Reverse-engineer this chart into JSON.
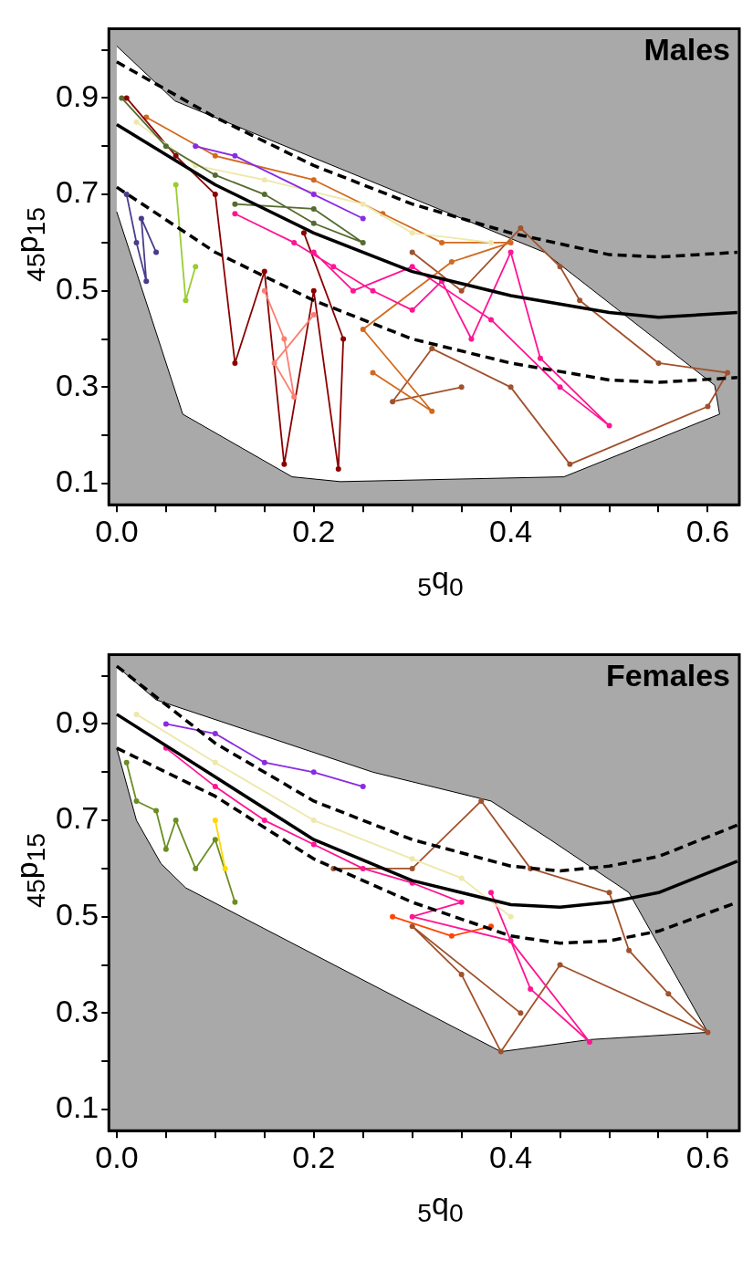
{
  "chart_data": [
    {
      "type": "line",
      "title": "Males",
      "xlabel": "$_{5}$q$_{0}$",
      "ylabel": "$_{45}$p$_{15}$",
      "xlim": [
        -0.008,
        0.632
      ],
      "ylim": [
        0.056,
        1.044
      ],
      "xticks": [
        {
          "value": 0,
          "label": "0.0"
        },
        {
          "value": 0.05,
          "label": null
        },
        {
          "value": 0.1,
          "label": null
        },
        {
          "value": 0.15,
          "label": null
        },
        {
          "value": 0.2,
          "label": "0.2"
        },
        {
          "value": 0.25,
          "label": null
        },
        {
          "value": 0.3,
          "label": null
        },
        {
          "value": 0.35,
          "label": null
        },
        {
          "value": 0.4,
          "label": "0.4"
        },
        {
          "value": 0.45,
          "label": null
        },
        {
          "value": 0.5,
          "label": null
        },
        {
          "value": 0.55,
          "label": null
        },
        {
          "value": 0.6,
          "label": "0.6"
        }
      ],
      "yticks": [
        0.1,
        {
          "value": 0.2,
          "label": null
        },
        0.3,
        {
          "value": 0.4,
          "label": null
        },
        0.5,
        {
          "value": 0.6,
          "label": null
        },
        0.7,
        {
          "value": 0.8,
          "label": null
        },
        0.9,
        {
          "value": 1.0,
          "label": null
        }
      ],
      "legend": false,
      "series": [
        {
          "type": "area",
          "color": "#ffffff",
          "marker": "none",
          "x": [
            0,
            0.059,
            0.434,
            0.607,
            0.612,
            0.454,
            0.227,
            0.178,
            0.067,
            0
          ],
          "values": [
            1.008,
            0.894,
            0.58,
            0.304,
            0.244,
            0.114,
            0.104,
            0.114,
            0.244,
            0.664
          ]
        },
        {
          "color": "#a0522d",
          "marker": "circle",
          "x": [
            0.3,
            0.35,
            0.41,
            0.45,
            0.47,
            0.55,
            0.62,
            0.6,
            0.46,
            0.4,
            0.32,
            0.28,
            0.35
          ],
          "values": [
            0.58,
            0.5,
            0.63,
            0.55,
            0.48,
            0.35,
            0.33,
            0.26,
            0.14,
            0.3,
            0.38,
            0.27,
            0.3
          ]
        },
        {
          "color": "#d2691e",
          "marker": "circle",
          "x": [
            0.03,
            0.1,
            0.2,
            0.27,
            0.33,
            0.4,
            0.34,
            0.25,
            0.32,
            0.26
          ],
          "values": [
            0.86,
            0.78,
            0.73,
            0.66,
            0.6,
            0.6,
            0.56,
            0.42,
            0.25,
            0.33
          ]
        },
        {
          "color": "#8b0000",
          "marker": "circle",
          "x": [
            0.01,
            0.06,
            0.1,
            0.12,
            0.15,
            0.17,
            0.2,
            0.225,
            0.23,
            0.19
          ],
          "values": [
            0.9,
            0.78,
            0.7,
            0.35,
            0.54,
            0.14,
            0.5,
            0.13,
            0.4,
            0.62
          ]
        },
        {
          "color": "#fa8072",
          "marker": "circle",
          "x": [
            0.15,
            0.17,
            0.18,
            0.16,
            0.2
          ],
          "values": [
            0.5,
            0.4,
            0.28,
            0.35,
            0.45
          ]
        },
        {
          "color": "#ff1493",
          "marker": "circle",
          "x": [
            0.12,
            0.18,
            0.22,
            0.26,
            0.3,
            0.33,
            0.36,
            0.4,
            0.43,
            0.5,
            0.45,
            0.38,
            0.3,
            0.24,
            0.2
          ],
          "values": [
            0.66,
            0.6,
            0.55,
            0.5,
            0.46,
            0.52,
            0.4,
            0.58,
            0.36,
            0.22,
            0.3,
            0.44,
            0.55,
            0.5,
            0.58
          ]
        },
        {
          "color": "#eee8aa",
          "marker": "circle",
          "x": [
            0.02,
            0.08,
            0.15,
            0.25,
            0.3,
            0.38
          ],
          "values": [
            0.85,
            0.76,
            0.73,
            0.68,
            0.62,
            0.6
          ]
        },
        {
          "color": "#8a2be2",
          "marker": "circle",
          "x": [
            0.08,
            0.12,
            0.2,
            0.25
          ],
          "values": [
            0.8,
            0.78,
            0.7,
            0.65
          ]
        },
        {
          "color": "#556b2f",
          "marker": "circle",
          "x": [
            0.005,
            0.05,
            0.1,
            0.15,
            0.2,
            0.25,
            0.2,
            0.12
          ],
          "values": [
            0.9,
            0.8,
            0.74,
            0.7,
            0.64,
            0.6,
            0.67,
            0.68
          ]
        },
        {
          "color": "#483d8b",
          "marker": "circle",
          "x": [
            0.01,
            0.02,
            0.03,
            0.025,
            0.04
          ],
          "values": [
            0.7,
            0.6,
            0.52,
            0.65,
            0.58
          ]
        },
        {
          "color": "#9acd32",
          "marker": "circle",
          "x": [
            0.06,
            0.07,
            0.08
          ],
          "values": [
            0.72,
            0.48,
            0.55
          ]
        },
        {
          "color": "#000000",
          "marker": "none",
          "line_style": "dashed",
          "x": [
            0,
            0.1,
            0.2,
            0.3,
            0.4,
            0.5,
            0.55,
            0.63
          ],
          "values": [
            0.975,
            0.86,
            0.76,
            0.68,
            0.62,
            0.575,
            0.57,
            0.58
          ]
        },
        {
          "color": "#000000",
          "marker": "none",
          "line_style": "solid",
          "x": [
            0,
            0.1,
            0.2,
            0.3,
            0.4,
            0.5,
            0.55,
            0.63
          ],
          "values": [
            0.845,
            0.72,
            0.62,
            0.54,
            0.49,
            0.455,
            0.445,
            0.455
          ]
        },
        {
          "color": "#000000",
          "marker": "none",
          "line_style": "dashed",
          "x": [
            0,
            0.1,
            0.2,
            0.3,
            0.4,
            0.5,
            0.55,
            0.63
          ],
          "values": [
            0.715,
            0.58,
            0.48,
            0.4,
            0.35,
            0.315,
            0.31,
            0.32
          ]
        }
      ]
    },
    {
      "type": "line",
      "title": "Females",
      "xlabel": "$_{5}$q$_{0}$",
      "ylabel": "$_{45}$p$_{15}$",
      "xlim": [
        -0.008,
        0.632
      ],
      "ylim": [
        0.056,
        1.044
      ],
      "xticks": [
        {
          "value": 0,
          "label": "0.0"
        },
        {
          "value": 0.05,
          "label": null
        },
        {
          "value": 0.1,
          "label": null
        },
        {
          "value": 0.15,
          "label": null
        },
        {
          "value": 0.2,
          "label": "0.2"
        },
        {
          "value": 0.25,
          "label": null
        },
        {
          "value": 0.3,
          "label": null
        },
        {
          "value": 0.35,
          "label": null
        },
        {
          "value": 0.4,
          "label": "0.4"
        },
        {
          "value": 0.45,
          "label": null
        },
        {
          "value": 0.5,
          "label": null
        },
        {
          "value": 0.55,
          "label": null
        },
        {
          "value": 0.6,
          "label": "0.6"
        }
      ],
      "yticks": [
        0.1,
        {
          "value": 0.2,
          "label": null
        },
        0.3,
        {
          "value": 0.4,
          "label": null
        },
        0.5,
        {
          "value": 0.6,
          "label": null
        },
        0.7,
        {
          "value": 0.8,
          "label": null
        },
        0.9,
        {
          "value": 1.0,
          "label": null
        }
      ],
      "legend": false,
      "series": [
        {
          "type": "area",
          "color": "#ffffff",
          "marker": "none",
          "x": [
            0,
            0.04,
            0.26,
            0.38,
            0.44,
            0.52,
            0.6,
            0.48,
            0.39,
            0.07,
            0.045,
            0.02,
            0
          ],
          "values": [
            1.02,
            0.95,
            0.8,
            0.74,
            0.66,
            0.55,
            0.26,
            0.245,
            0.22,
            0.56,
            0.61,
            0.7,
            0.85
          ]
        },
        {
          "color": "#a0522d",
          "marker": "circle",
          "x": [
            0.22,
            0.3,
            0.37,
            0.42,
            0.5,
            0.52,
            0.56,
            0.6,
            0.45,
            0.39,
            0.35,
            0.3,
            0.41
          ],
          "values": [
            0.6,
            0.6,
            0.74,
            0.6,
            0.55,
            0.43,
            0.34,
            0.26,
            0.4,
            0.22,
            0.38,
            0.48,
            0.3
          ]
        },
        {
          "color": "#ff1493",
          "marker": "circle",
          "x": [
            0.05,
            0.1,
            0.15,
            0.2,
            0.25,
            0.3,
            0.35,
            0.3,
            0.4,
            0.48,
            0.42,
            0.38
          ],
          "values": [
            0.85,
            0.77,
            0.7,
            0.65,
            0.6,
            0.57,
            0.53,
            0.5,
            0.45,
            0.24,
            0.35,
            0.55
          ]
        },
        {
          "color": "#8a2be2",
          "marker": "circle",
          "x": [
            0.05,
            0.1,
            0.15,
            0.2,
            0.25
          ],
          "values": [
            0.9,
            0.88,
            0.82,
            0.8,
            0.77
          ]
        },
        {
          "color": "#6b8e23",
          "marker": "circle",
          "x": [
            0.01,
            0.02,
            0.04,
            0.05,
            0.06,
            0.08,
            0.1,
            0.12
          ],
          "values": [
            0.82,
            0.74,
            0.72,
            0.64,
            0.7,
            0.6,
            0.66,
            0.53
          ]
        },
        {
          "color": "#eee8aa",
          "marker": "circle",
          "x": [
            0.02,
            0.1,
            0.2,
            0.3,
            0.35,
            0.4
          ],
          "values": [
            0.92,
            0.82,
            0.7,
            0.62,
            0.58,
            0.5
          ]
        },
        {
          "color": "#ff4500",
          "marker": "circle",
          "x": [
            0.28,
            0.34,
            0.38
          ],
          "values": [
            0.5,
            0.46,
            0.48
          ]
        },
        {
          "color": "#ffd700",
          "marker": "circle",
          "x": [
            0.1,
            0.11
          ],
          "values": [
            0.7,
            0.6
          ]
        },
        {
          "color": "#000000",
          "marker": "none",
          "line_style": "dashed",
          "x": [
            0,
            0.1,
            0.2,
            0.3,
            0.4,
            0.45,
            0.5,
            0.55,
            0.63
          ],
          "values": [
            1.02,
            0.86,
            0.74,
            0.66,
            0.605,
            0.595,
            0.605,
            0.625,
            0.69
          ]
        },
        {
          "color": "#000000",
          "marker": "none",
          "line_style": "solid",
          "x": [
            0,
            0.1,
            0.2,
            0.3,
            0.4,
            0.45,
            0.5,
            0.55,
            0.63
          ],
          "values": [
            0.92,
            0.79,
            0.66,
            0.575,
            0.525,
            0.52,
            0.53,
            0.55,
            0.615
          ]
        },
        {
          "color": "#000000",
          "marker": "none",
          "line_style": "dashed",
          "x": [
            0,
            0.1,
            0.2,
            0.3,
            0.4,
            0.45,
            0.5,
            0.55,
            0.63
          ],
          "values": [
            0.85,
            0.75,
            0.62,
            0.53,
            0.46,
            0.445,
            0.45,
            0.47,
            0.53
          ]
        }
      ]
    }
  ]
}
